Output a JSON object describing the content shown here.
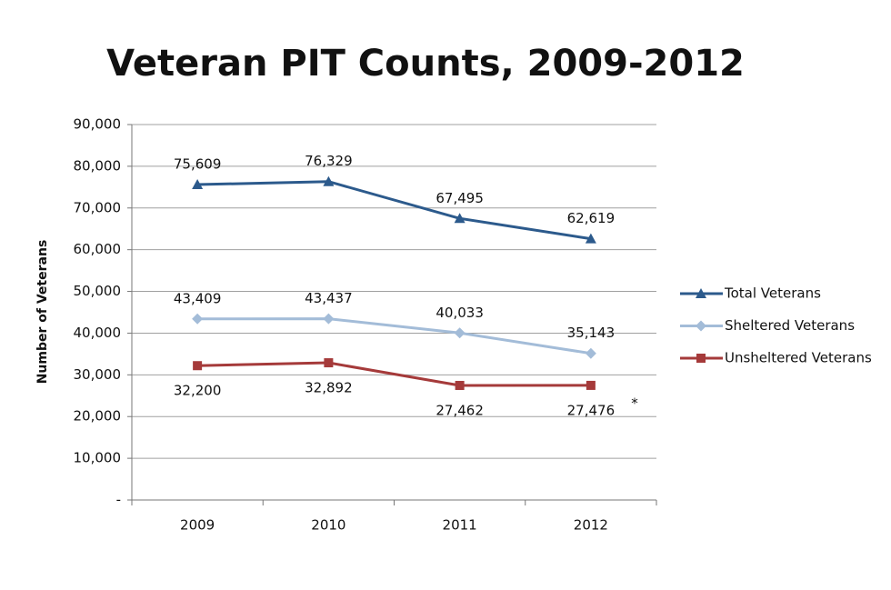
{
  "chart_data": {
    "type": "line",
    "title": "Veteran PIT Counts, 2009-2012",
    "y_label": "Number of Veterans",
    "categories": [
      "2009",
      "2010",
      "2011",
      "2012"
    ],
    "series": [
      {
        "name": "Total Veterans",
        "color": "#2c5a8c",
        "marker": "triangle",
        "values": [
          75609,
          76329,
          67495,
          62619
        ],
        "value_labels": [
          "75,609",
          "76,329",
          "67,495",
          "62,619"
        ]
      },
      {
        "name": "Sheltered Veterans",
        "color": "#a3bcd8",
        "marker": "diamond",
        "values": [
          43409,
          43437,
          40033,
          35143
        ],
        "value_labels": [
          "43,409",
          "43,437",
          "40,033",
          "35,143"
        ]
      },
      {
        "name": "Unsheltered Veterans",
        "color": "#a53a3a",
        "marker": "square",
        "values": [
          32200,
          32892,
          27462,
          27476
        ],
        "value_labels": [
          "32,200",
          "32,892",
          "27,462",
          "27,476"
        ]
      }
    ],
    "annotation": "*",
    "ylim": [
      0,
      90000
    ],
    "yticks": [
      {
        "value": 0,
        "label": "-"
      },
      {
        "value": 10000,
        "label": "10,000"
      },
      {
        "value": 20000,
        "label": "20,000"
      },
      {
        "value": 30000,
        "label": "30,000"
      },
      {
        "value": 40000,
        "label": "40,000"
      },
      {
        "value": 50000,
        "label": "50,000"
      },
      {
        "value": 60000,
        "label": "60,000"
      },
      {
        "value": 70000,
        "label": "70,000"
      },
      {
        "value": 80000,
        "label": "80,000"
      },
      {
        "value": 90000,
        "label": "90,000"
      }
    ],
    "grid": true,
    "legend": "right"
  }
}
